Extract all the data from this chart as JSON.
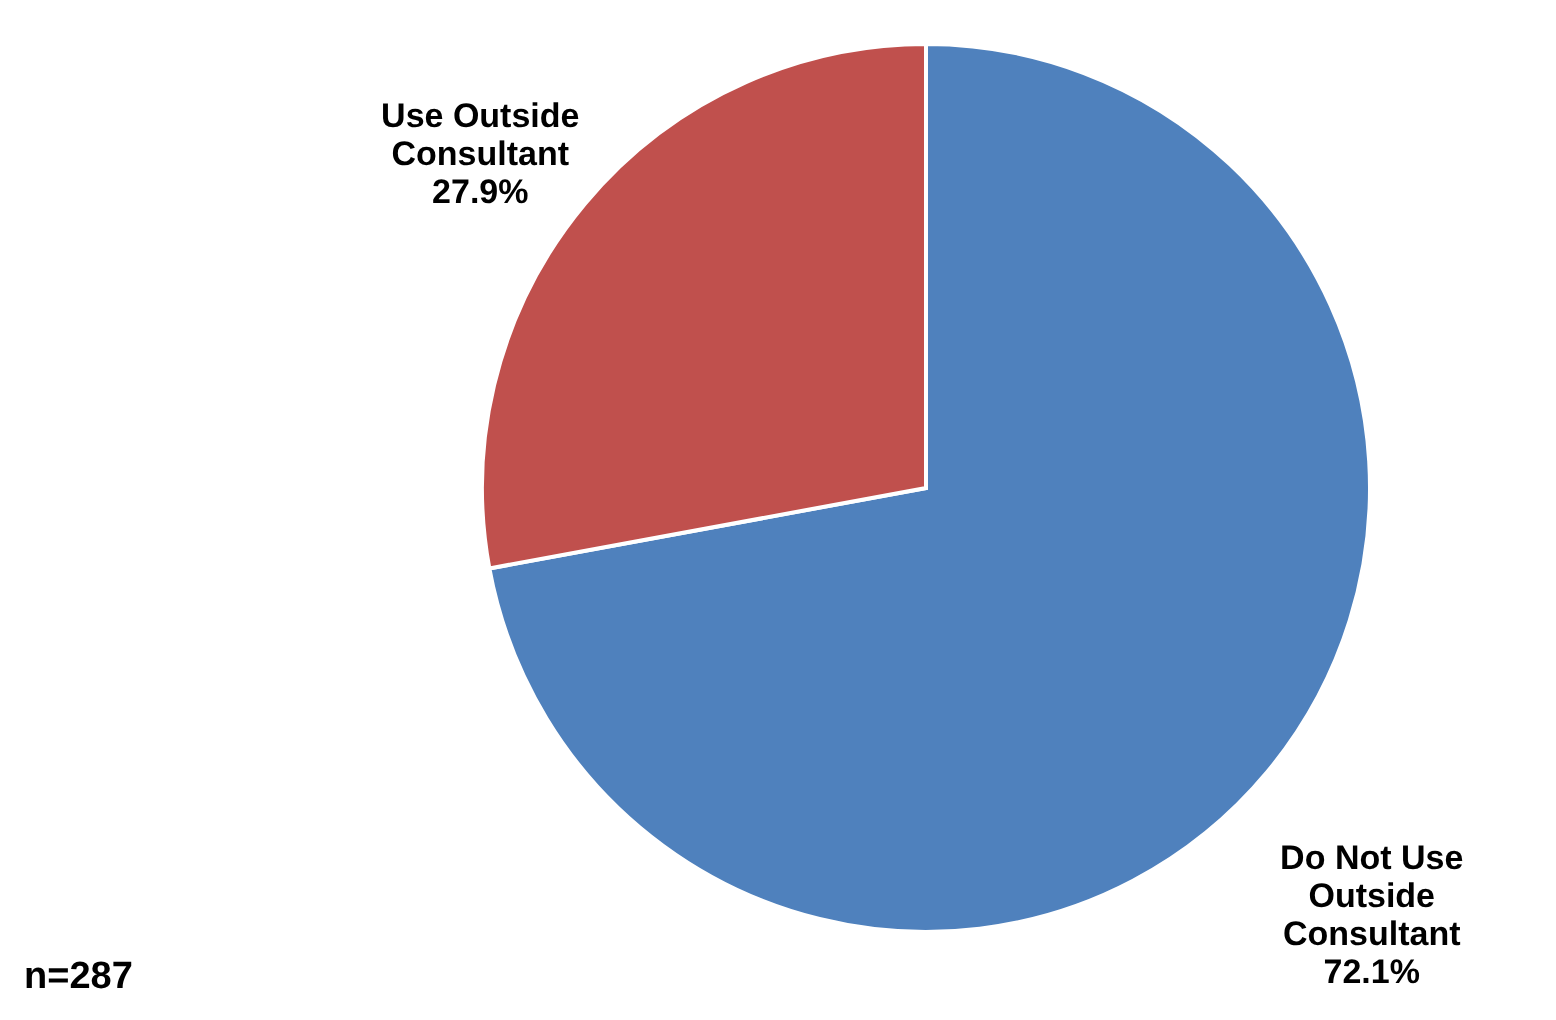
{
  "chart_data": {
    "type": "pie",
    "categories": [
      "Do Not Use Outside Consultant",
      "Use Outside Consultant"
    ],
    "values": [
      72.1,
      27.9
    ],
    "value_labels": [
      "72.1%",
      "27.9%"
    ],
    "colors": [
      "#4f81bd",
      "#c0504d"
    ],
    "annotations": [
      "n=287"
    ]
  }
}
